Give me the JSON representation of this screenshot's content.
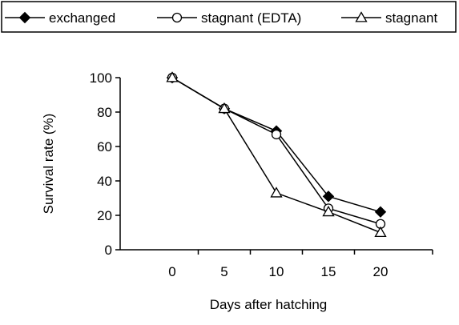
{
  "chart_data": {
    "type": "line",
    "title": "",
    "xlabel": "Days after hatching",
    "ylabel": "Survival rate (%)",
    "x": [
      0,
      5,
      10,
      15,
      20
    ],
    "xlim": [
      -5,
      25
    ],
    "ylim": [
      0,
      100
    ],
    "xticks": [
      "0",
      "5",
      "10",
      "15",
      "20"
    ],
    "yticks": [
      "0",
      "20",
      "40",
      "60",
      "80",
      "100"
    ],
    "grid": false,
    "legend_position": "top",
    "series": [
      {
        "name": "exchanged",
        "values": [
          100,
          82,
          69,
          31,
          22
        ],
        "marker": "filled-diamond",
        "color": "#000000"
      },
      {
        "name": "stagnant (EDTA)",
        "values": [
          100,
          82,
          67,
          24,
          15
        ],
        "marker": "open-circle",
        "color": "#000000"
      },
      {
        "name": "stagnant",
        "values": [
          100,
          82,
          33,
          22,
          10
        ],
        "marker": "open-triangle",
        "color": "#000000"
      }
    ]
  }
}
